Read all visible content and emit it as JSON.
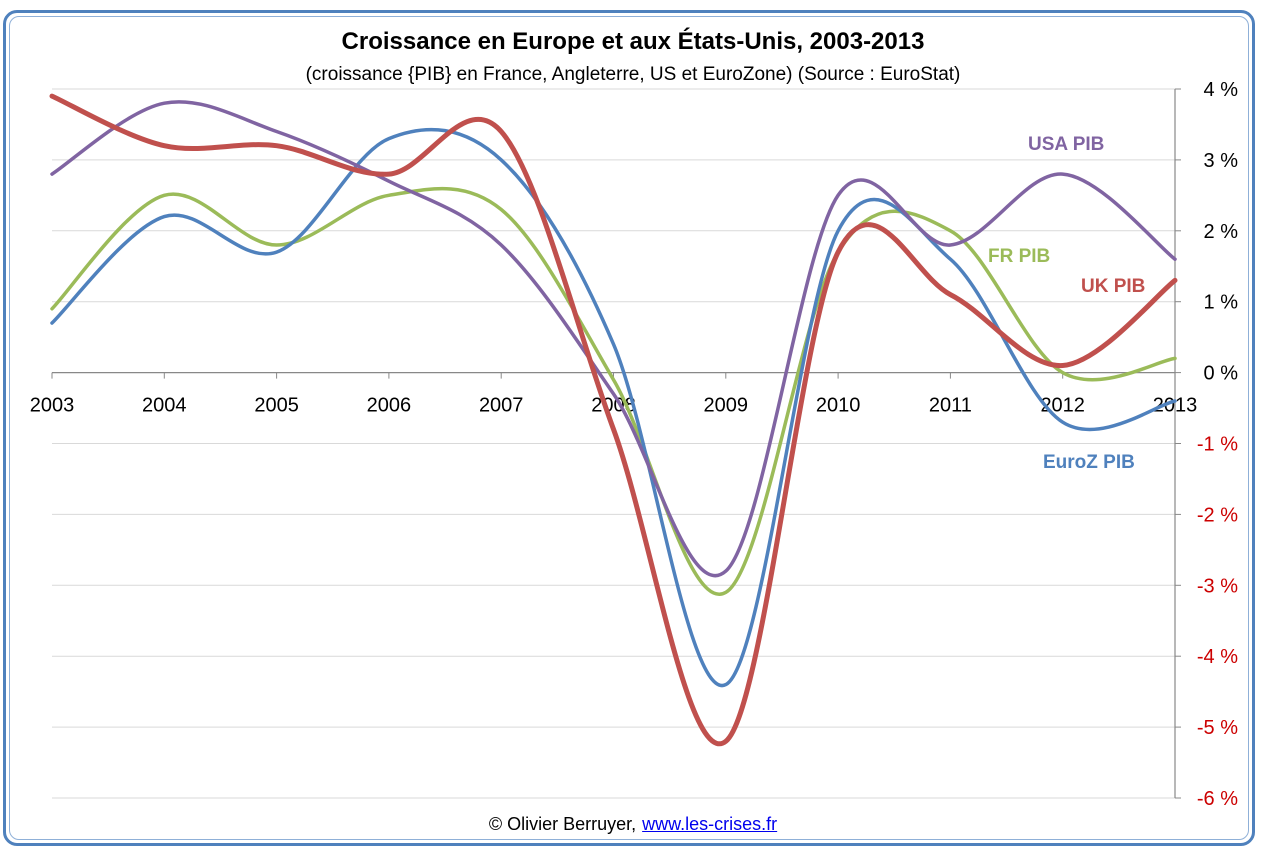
{
  "chart_data": {
    "type": "line",
    "title": "Croissance en Europe et aux États-Unis, 2003-2013",
    "subtitle": "(croissance {PIB} en France, Angleterre, US et EuroZone) (Source : EuroStat)",
    "xlabel": "",
    "ylabel": "",
    "x": [
      2003,
      2004,
      2005,
      2006,
      2007,
      2008,
      2009,
      2010,
      2011,
      2012,
      2013
    ],
    "x_tick_labels": [
      "2003",
      "2004",
      "2005",
      "2006",
      "2007",
      "2008",
      "2009",
      "2010",
      "2011",
      "2012",
      "2013"
    ],
    "ylim": [
      -6,
      4
    ],
    "y_ticks": [
      4,
      3,
      2,
      1,
      0,
      -1,
      -2,
      -3,
      -4,
      -5,
      -6
    ],
    "y_tick_labels": [
      "4 %",
      "3 %",
      "2 %",
      "1 %",
      "0 %",
      "-1 %",
      "-2 %",
      "-3 %",
      "-4 %",
      "-5 %",
      "-6 %"
    ],
    "y_axis_position": "right",
    "grid": true,
    "series": [
      {
        "name": "FR PIB",
        "color": "#9bbb59",
        "values": [
          0.9,
          2.5,
          1.8,
          2.5,
          2.3,
          -0.1,
          -3.1,
          1.7,
          2.0,
          0.0,
          0.2
        ]
      },
      {
        "name": "EuroZ PIB",
        "color": "#4f81bd",
        "values": [
          0.7,
          2.2,
          1.7,
          3.3,
          3.0,
          0.4,
          -4.4,
          2.0,
          1.6,
          -0.7,
          -0.4
        ]
      },
      {
        "name": "USA PIB",
        "color": "#8064a2",
        "values": [
          2.8,
          3.8,
          3.4,
          2.7,
          1.8,
          -0.3,
          -2.8,
          2.5,
          1.8,
          2.8,
          1.6
        ]
      },
      {
        "name": "UK PIB",
        "color": "#c0504d",
        "values": [
          3.9,
          3.2,
          3.2,
          2.8,
          3.4,
          -0.8,
          -5.2,
          1.7,
          1.1,
          0.1,
          1.3
        ]
      }
    ],
    "annotations": [
      {
        "text": "USA PIB",
        "series": "USA PIB"
      },
      {
        "text": "FR PIB",
        "series": "FR PIB"
      },
      {
        "text": "UK PIB",
        "series": "UK PIB"
      },
      {
        "text": "EuroZ PIB",
        "series": "EuroZ PIB"
      }
    ],
    "colors": {
      "negative_tick": "#cc0000",
      "positive_tick": "#000000",
      "gridline": "#d9d9d9",
      "frame": "#4f81bd"
    }
  },
  "footer": {
    "credit": "© Olivier Berruyer,",
    "link": "www.les-crises.fr"
  }
}
